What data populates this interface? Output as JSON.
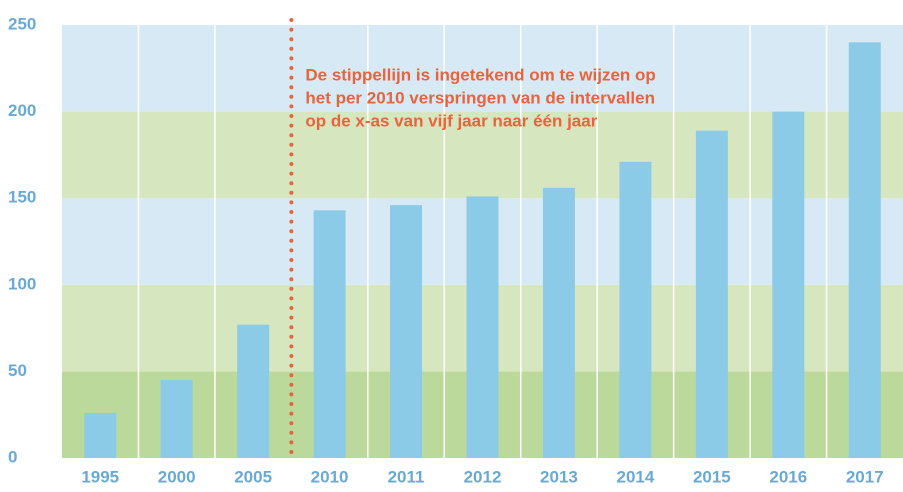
{
  "chart_data": {
    "type": "bar",
    "annotation": [
      "De stippellijn is ingetekend om te wijzen op",
      "het per 2010 verspringen van de intervallen",
      "op de x-as van vijf jaar naar één jaar"
    ],
    "categories": [
      "1995",
      "2000",
      "2005",
      "2010",
      "2011",
      "2012",
      "2013",
      "2014",
      "2015",
      "2016",
      "2017"
    ],
    "values": [
      26,
      45,
      77,
      143,
      146,
      151,
      156,
      171,
      189,
      200,
      240
    ],
    "color": "#8ccbe8",
    "band_colors": [
      "#bcd99c",
      "#d6e6bf",
      "#d6e9f5",
      "#d6e6bf",
      "#d6e9f5"
    ],
    "annotation_color": "#e8643c",
    "ylim": [
      0,
      250
    ],
    "yticks": [
      0,
      50,
      100,
      150,
      200,
      250
    ]
  }
}
